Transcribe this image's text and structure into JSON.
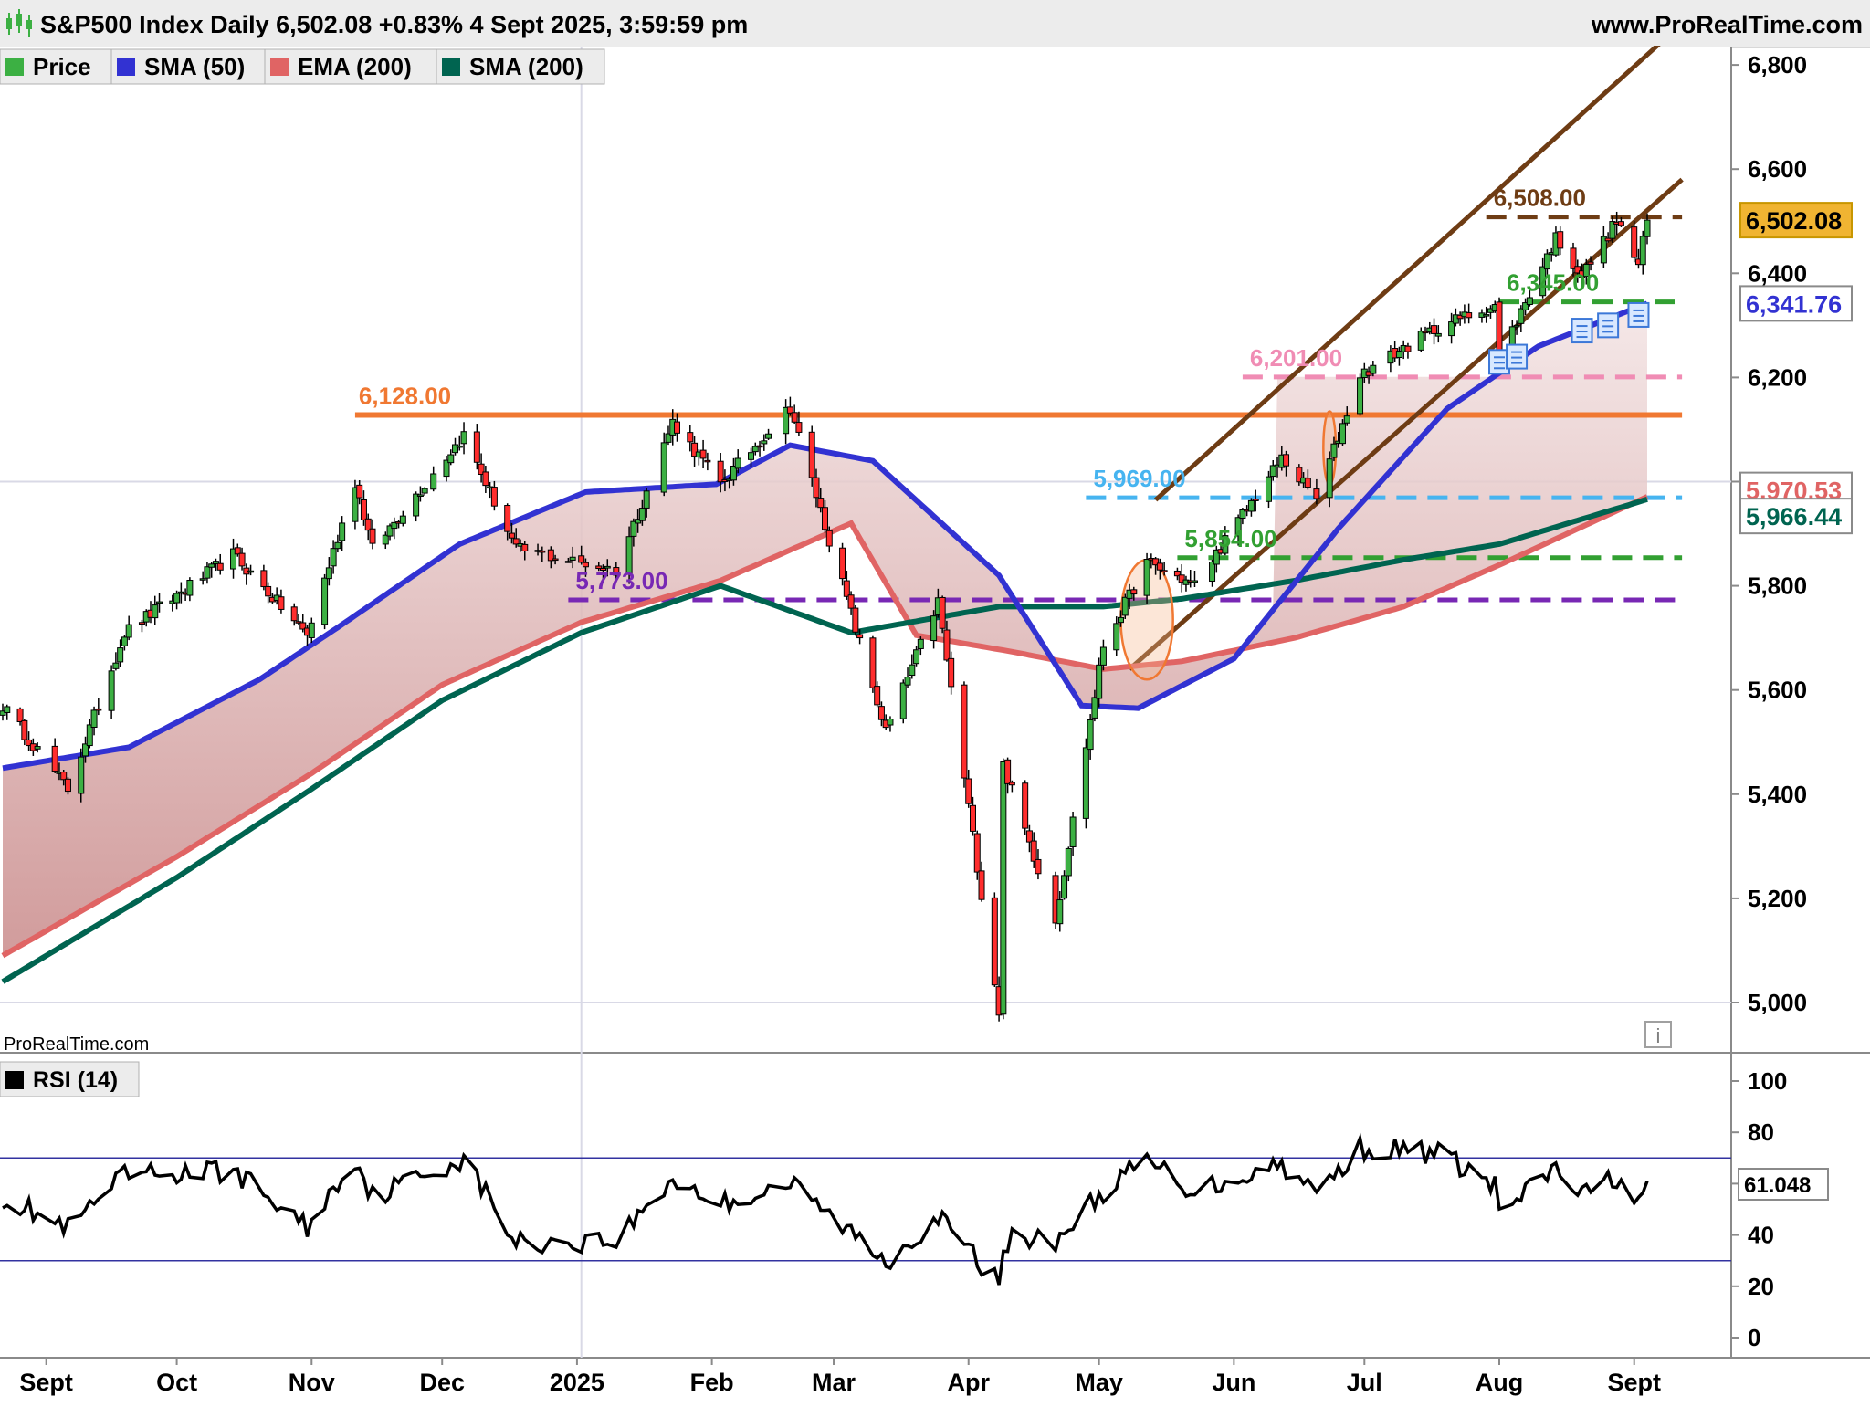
{
  "header": {
    "title": "S&P500 Index Daily 6,502.08 +0.83% 4 Sept 2025, 3:59:59 pm",
    "site": "www.ProRealTime.com",
    "watermark": "ProRealTime.com"
  },
  "legend": [
    {
      "label": "Price",
      "color": "#3cb043"
    },
    {
      "label": "SMA (50)",
      "color": "#3232d2"
    },
    {
      "label": "EMA (200)",
      "color": "#e06464"
    },
    {
      "label": "SMA (200)",
      "color": "#006450"
    }
  ],
  "rsi_legend": {
    "label": "RSI (14)",
    "color": "#000000"
  },
  "icons": {
    "info": "info-icon",
    "news": "news-document-icon",
    "candles": "candlestick-icon"
  },
  "chart_data": {
    "type": "candlestick",
    "title": "S&P500 Index Daily",
    "ylim": [
      4900,
      6850
    ],
    "y_ticks": [
      "5,000",
      "5,200",
      "5,400",
      "5,600",
      "5,800",
      "6,000",
      "6,200",
      "6,400",
      "6,600",
      "6,800"
    ],
    "y_tick_values": [
      5000,
      5200,
      5400,
      5600,
      5800,
      6000,
      6200,
      6400,
      6600,
      6800
    ],
    "x_ticks": [
      "Sept",
      "Oct",
      "Nov",
      "Dec",
      "2025",
      "Feb",
      "Mar",
      "Apr",
      "May",
      "Jun",
      "Jul",
      "Aug",
      "Sept"
    ],
    "x_tick_months": [
      "2024-09",
      "2024-10",
      "2024-11",
      "2024-12",
      "2025-01",
      "2025-02",
      "2025-03",
      "2025-04",
      "2025-05",
      "2025-06",
      "2025-07",
      "2025-08",
      "2025-09"
    ],
    "price_anchors": [
      [
        "2024-08-22",
        5570
      ],
      [
        "2024-09-06",
        5410
      ],
      [
        "2024-09-19",
        5710
      ],
      [
        "2024-10-14",
        5860
      ],
      [
        "2024-10-31",
        5705
      ],
      [
        "2024-11-11",
        6000
      ],
      [
        "2024-11-15",
        5870
      ],
      [
        "2024-12-06",
        6090
      ],
      [
        "2024-12-18",
        5870
      ],
      [
        "2025-01-10",
        5830
      ],
      [
        "2025-01-23",
        6115
      ],
      [
        "2025-02-03",
        5995
      ],
      [
        "2025-02-19",
        6144
      ],
      [
        "2025-03-13",
        5520
      ],
      [
        "2025-03-25",
        5770
      ],
      [
        "2025-04-08",
        4982
      ],
      [
        "2025-04-09",
        5456
      ],
      [
        "2025-04-21",
        5158
      ],
      [
        "2025-05-02",
        5686
      ],
      [
        "2025-05-12",
        5844
      ],
      [
        "2025-05-23",
        5802
      ],
      [
        "2025-06-12",
        6045
      ],
      [
        "2025-06-20",
        5967
      ],
      [
        "2025-06-30",
        6205
      ],
      [
        "2025-07-18",
        6297
      ],
      [
        "2025-07-31",
        6339
      ],
      [
        "2025-08-01",
        6238
      ],
      [
        "2025-08-14",
        6468
      ],
      [
        "2025-08-20",
        6395
      ],
      [
        "2025-08-28",
        6501
      ],
      [
        "2025-09-02",
        6416
      ],
      [
        "2025-09-04",
        6502
      ]
    ],
    "indicators": {
      "sma50": [
        [
          "2024-08-22",
          5450
        ],
        [
          "2024-09-20",
          5490
        ],
        [
          "2024-10-20",
          5620
        ],
        [
          "2024-11-07",
          5720
        ],
        [
          "2024-12-05",
          5880
        ],
        [
          "2025-01-03",
          5980
        ],
        [
          "2025-02-02",
          5995
        ],
        [
          "2025-02-19",
          6070
        ],
        [
          "2025-03-10",
          6040
        ],
        [
          "2025-04-08",
          5820
        ],
        [
          "2025-04-27",
          5570
        ],
        [
          "2025-05-10",
          5565
        ],
        [
          "2025-06-01",
          5660
        ],
        [
          "2025-06-25",
          5910
        ],
        [
          "2025-07-20",
          6140
        ],
        [
          "2025-08-10",
          6260
        ],
        [
          "2025-09-04",
          6342
        ]
      ],
      "ema200": [
        [
          "2024-08-22",
          5090
        ],
        [
          "2024-10-01",
          5280
        ],
        [
          "2024-11-01",
          5440
        ],
        [
          "2024-12-01",
          5610
        ],
        [
          "2025-01-02",
          5730
        ],
        [
          "2025-02-03",
          5810
        ],
        [
          "2025-03-05",
          5920
        ],
        [
          "2025-03-20",
          5705
        ],
        [
          "2025-04-10",
          5675
        ],
        [
          "2025-05-02",
          5640
        ],
        [
          "2025-05-20",
          5655
        ],
        [
          "2025-06-15",
          5700
        ],
        [
          "2025-07-10",
          5760
        ],
        [
          "2025-08-01",
          5840
        ],
        [
          "2025-09-04",
          5971
        ]
      ],
      "sma200": [
        [
          "2024-08-22",
          5040
        ],
        [
          "2024-10-01",
          5240
        ],
        [
          "2024-11-01",
          5410
        ],
        [
          "2024-12-01",
          5580
        ],
        [
          "2025-01-02",
          5710
        ],
        [
          "2025-02-03",
          5800
        ],
        [
          "2025-03-05",
          5710
        ],
        [
          "2025-04-08",
          5760
        ],
        [
          "2025-05-02",
          5760
        ],
        [
          "2025-05-20",
          5775
        ],
        [
          "2025-06-15",
          5810
        ],
        [
          "2025-07-10",
          5850
        ],
        [
          "2025-08-01",
          5880
        ],
        [
          "2025-09-04",
          5966
        ]
      ]
    },
    "levels": [
      {
        "label": "6,508.00",
        "value": 6508,
        "start": "2025-07-29",
        "end": "2025-09-12",
        "color": "#6e3c14",
        "style": "dashed"
      },
      {
        "label": "6,345.00",
        "value": 6345,
        "start": "2025-08-01",
        "end": "2025-09-12",
        "color": "#32a032",
        "style": "dashed"
      },
      {
        "label": "6,201.00",
        "value": 6201,
        "start": "2025-06-03",
        "end": "2025-09-12",
        "color": "#f08cb4",
        "style": "dashed"
      },
      {
        "label": "6,128.00",
        "value": 6128,
        "start": "2024-11-11",
        "end": "2025-09-12",
        "color": "#f07832",
        "style": "solid"
      },
      {
        "label": "5,969.00",
        "value": 5969,
        "start": "2025-04-28",
        "end": "2025-09-12",
        "color": "#46b4f0",
        "style": "dashed"
      },
      {
        "label": "5,854.00",
        "value": 5854,
        "start": "2025-05-19",
        "end": "2025-09-12",
        "color": "#32a032",
        "style": "dashed"
      },
      {
        "label": "5,773.00",
        "value": 5773,
        "start": "2024-12-30",
        "end": "2025-09-12",
        "color": "#7828b4",
        "style": "dashed"
      }
    ],
    "channel": [
      {
        "from": [
          "2025-05-14",
          5965
        ],
        "to": [
          "2025-09-12",
          6880
        ]
      },
      {
        "from": [
          "2025-05-08",
          5640
        ],
        "to": [
          "2025-09-12",
          6580
        ]
      }
    ],
    "highlights": [
      {
        "center": [
          "2025-05-12",
          5735
        ],
        "rx_days": 2.5,
        "ry": 115
      },
      {
        "center": [
          "2025-06-23",
          6065
        ],
        "rx_days": 0.6,
        "ry": 70
      }
    ],
    "price_tags": [
      {
        "label": "6,502.08",
        "value": 6502,
        "bg": "#f0b432",
        "fg": "#000000",
        "border": "#c89600"
      },
      {
        "label": "6,341.76",
        "value": 6342,
        "bg": "#ffffff",
        "fg": "#3232d2",
        "border": "#8a8a8a"
      },
      {
        "label": "5,970.53",
        "value": 5984,
        "bg": "#ffffff",
        "fg": "#e06464",
        "border": "#8a8a8a"
      },
      {
        "label": "5,966.44",
        "value": 5934,
        "bg": "#ffffff",
        "fg": "#006450",
        "border": "#8a8a8a"
      }
    ],
    "news_markers": [
      [
        "2025-08-01",
        6230
      ],
      [
        "2025-08-05",
        6240
      ],
      [
        "2025-08-20",
        6290
      ],
      [
        "2025-08-26",
        6300
      ],
      [
        "2025-09-02",
        6320
      ]
    ],
    "rsi": {
      "label": "RSI (14)",
      "last": "61.048",
      "ylim": [
        0,
        100
      ],
      "y_ticks": [
        "0",
        "20",
        "40",
        "60",
        "80",
        "100"
      ],
      "y_tick_values": [
        0,
        20,
        40,
        60,
        80,
        100
      ],
      "bands": [
        30,
        70
      ],
      "anchors": [
        [
          "2024-08-22",
          55
        ],
        [
          "2024-09-06",
          42
        ],
        [
          "2024-09-19",
          63
        ],
        [
          "2024-10-14",
          65
        ],
        [
          "2024-10-31",
          43
        ],
        [
          "2024-11-11",
          70
        ],
        [
          "2024-11-15",
          55
        ],
        [
          "2024-12-06",
          70
        ],
        [
          "2024-12-18",
          37
        ],
        [
          "2025-01-10",
          38
        ],
        [
          "2025-01-23",
          62
        ],
        [
          "2025-02-03",
          52
        ],
        [
          "2025-02-19",
          60
        ],
        [
          "2025-03-13",
          30
        ],
        [
          "2025-03-25",
          47
        ],
        [
          "2025-04-08",
          21
        ],
        [
          "2025-04-09",
          38
        ],
        [
          "2025-04-21",
          38
        ],
        [
          "2025-05-02",
          57
        ],
        [
          "2025-05-12",
          69
        ],
        [
          "2025-05-23",
          57
        ],
        [
          "2025-06-12",
          68
        ],
        [
          "2025-06-20",
          56
        ],
        [
          "2025-06-30",
          74
        ],
        [
          "2025-07-18",
          72
        ],
        [
          "2025-07-31",
          59
        ],
        [
          "2025-08-01",
          48
        ],
        [
          "2025-08-14",
          66
        ],
        [
          "2025-08-20",
          55
        ],
        [
          "2025-08-28",
          63
        ],
        [
          "2025-09-02",
          52
        ],
        [
          "2025-09-04",
          61
        ]
      ]
    }
  }
}
